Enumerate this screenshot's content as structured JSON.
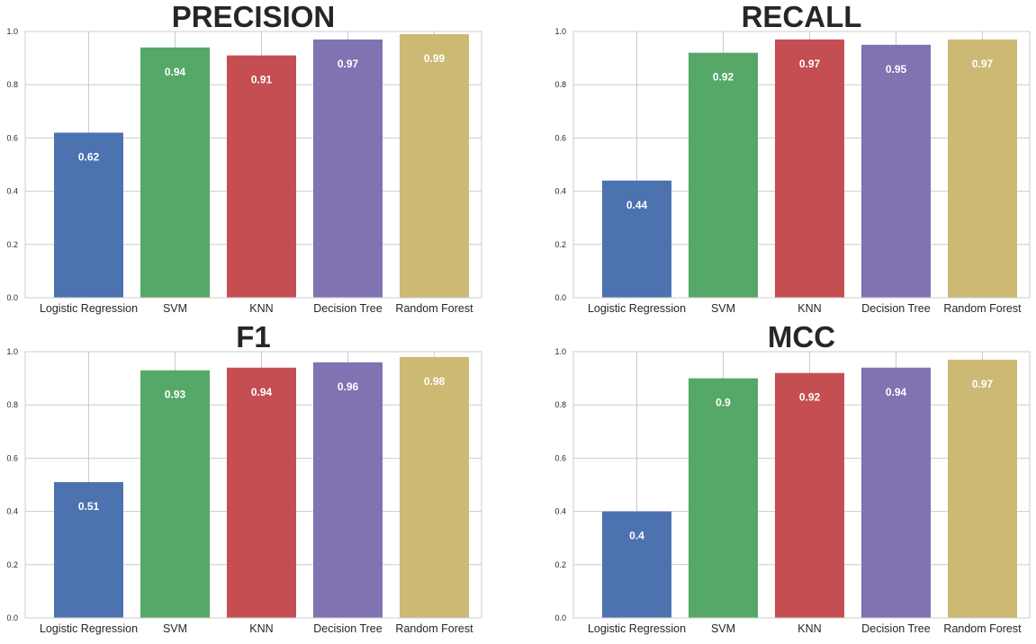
{
  "chart_data": [
    {
      "type": "bar",
      "title": "PRECISION",
      "categories": [
        "Logistic Regression",
        "SVM",
        "KNN",
        "Decision Tree",
        "Random Forest"
      ],
      "values": [
        0.62,
        0.94,
        0.91,
        0.97,
        0.99
      ],
      "value_labels": [
        "0.62",
        "0.94",
        "0.91",
        "0.97",
        "0.99"
      ],
      "ylim": [
        0,
        1
      ],
      "yticks": [
        "0.0",
        "0.2",
        "0.4",
        "0.6",
        "0.8",
        "1.0"
      ],
      "grid": true
    },
    {
      "type": "bar",
      "title": "RECALL",
      "categories": [
        "Logistic Regression",
        "SVM",
        "KNN",
        "Decision Tree",
        "Random Forest"
      ],
      "values": [
        0.44,
        0.92,
        0.97,
        0.95,
        0.97
      ],
      "value_labels": [
        "0.44",
        "0.92",
        "0.97",
        "0.95",
        "0.97"
      ],
      "ylim": [
        0,
        1
      ],
      "yticks": [
        "0.0",
        "0.2",
        "0.4",
        "0.6",
        "0.8",
        "1.0"
      ],
      "grid": true
    },
    {
      "type": "bar",
      "title": "F1",
      "categories": [
        "Logistic Regression",
        "SVM",
        "KNN",
        "Decision Tree",
        "Random Forest"
      ],
      "values": [
        0.51,
        0.93,
        0.94,
        0.96,
        0.98
      ],
      "value_labels": [
        "0.51",
        "0.93",
        "0.94",
        "0.96",
        "0.98"
      ],
      "ylim": [
        0,
        1
      ],
      "yticks": [
        "0.0",
        "0.2",
        "0.4",
        "0.6",
        "0.8",
        "1.0"
      ],
      "grid": true
    },
    {
      "type": "bar",
      "title": "MCC",
      "categories": [
        "Logistic Regression",
        "SVM",
        "KNN",
        "Decision Tree",
        "Random Forest"
      ],
      "values": [
        0.4,
        0.9,
        0.92,
        0.94,
        0.97
      ],
      "value_labels": [
        "0.4",
        "0.9",
        "0.92",
        "0.94",
        "0.97"
      ],
      "ylim": [
        0,
        1
      ],
      "yticks": [
        "0.0",
        "0.2",
        "0.4",
        "0.6",
        "0.8",
        "1.0"
      ],
      "grid": true
    }
  ],
  "colors": {
    "bars": [
      "#4c72b0",
      "#55a868",
      "#c44e52",
      "#8172b2",
      "#ccb974"
    ],
    "grid": "#cccccc",
    "text": "#262626",
    "bar_label": "#ffffff"
  }
}
